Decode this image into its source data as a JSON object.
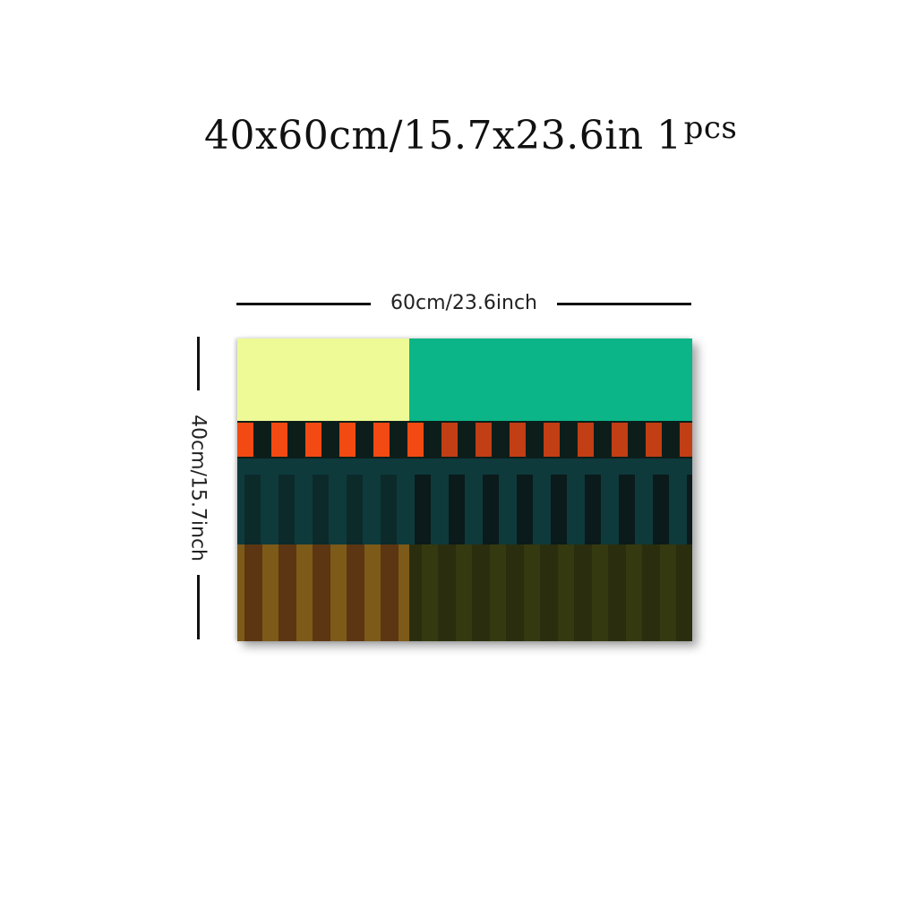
{
  "title": {
    "main": "40x60cm/15.7x23.6in 1",
    "suffix": "pcs"
  },
  "dimensions": {
    "width_label": "60cm/23.6inch",
    "height_label": "40cm/15.7inch"
  },
  "artwork": {
    "colors": {
      "pale_yellow": "#eefa96",
      "teal_green": "#0bb588",
      "orange": "#f24a12",
      "rust": "#c23e14",
      "near_black": "#0d1e1a",
      "dark_teal": "#0e3a3c",
      "ochre": "#7d5a17",
      "brown": "#5c3612",
      "olive_dark": "#2a2e0e",
      "olive_mid": "#35390f"
    }
  }
}
